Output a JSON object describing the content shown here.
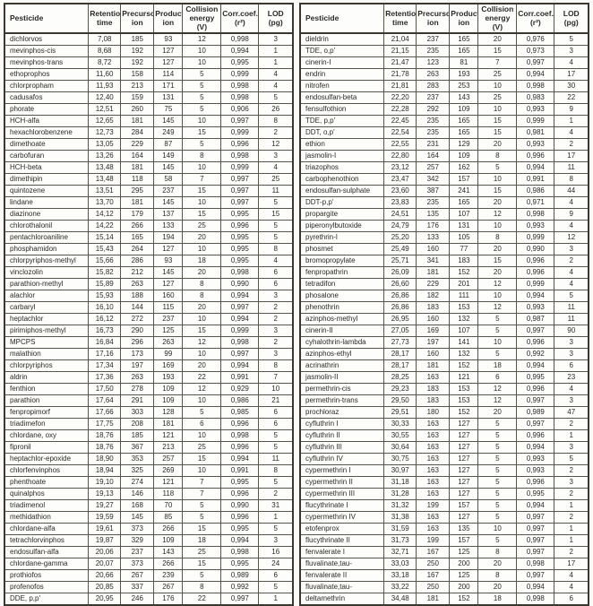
{
  "colors": {
    "page_background": "#fbfaf8",
    "table_background": "#fdfdfb",
    "border": "#58544b",
    "outer_border": "#3b372f",
    "text": "#2b2a27"
  },
  "columns": [
    "Pesticide",
    "Retention\ntime",
    "Precursor\nion",
    "Product\nion",
    "Collision\nenergy (V)",
    "Corr.coef.\n(r²)",
    "LOD\n(pg)"
  ],
  "tables": [
    {
      "name": "pesticide-table-left",
      "rows": [
        [
          "dichlorvos",
          "7,08",
          "185",
          "93",
          "12",
          "0,998",
          "3"
        ],
        [
          "mevinphos-cis",
          "8,68",
          "192",
          "127",
          "10",
          "0,994",
          "1"
        ],
        [
          "mevinphos-trans",
          "8,72",
          "192",
          "127",
          "10",
          "0,995",
          "1"
        ],
        [
          "ethoprophos",
          "11,60",
          "158",
          "114",
          "5",
          "0,999",
          "4"
        ],
        [
          "chlorpropham",
          "11,93",
          "213",
          "171",
          "5",
          "0,998",
          "4"
        ],
        [
          "cadusafos",
          "12,40",
          "159",
          "131",
          "5",
          "0,998",
          "5"
        ],
        [
          "phorate",
          "12,51",
          "260",
          "75",
          "5",
          "0,906",
          "26"
        ],
        [
          "HCH-alfa",
          "12,65",
          "181",
          "145",
          "10",
          "0,997",
          "8"
        ],
        [
          "hexachlorobenzene",
          "12,73",
          "284",
          "249",
          "15",
          "0,999",
          "2"
        ],
        [
          "dimethoate",
          "13,05",
          "229",
          "87",
          "5",
          "0,996",
          "12"
        ],
        [
          "carbofuran",
          "13,26",
          "164",
          "149",
          "8",
          "0,998",
          "3"
        ],
        [
          "HCH-beta",
          "13,48",
          "181",
          "145",
          "10",
          "0,999",
          "4"
        ],
        [
          "dimethipin",
          "13,48",
          "118",
          "58",
          "7",
          "0,997",
          "25"
        ],
        [
          "quintozene",
          "13,51",
          "295",
          "237",
          "15",
          "0,997",
          "11"
        ],
        [
          "lindane",
          "13,70",
          "181",
          "145",
          "10",
          "0,997",
          "5"
        ],
        [
          "diazinone",
          "14,12",
          "179",
          "137",
          "15",
          "0,995",
          "15"
        ],
        [
          "chlorothalonil",
          "14,22",
          "266",
          "133",
          "25",
          "0,996",
          "5"
        ],
        [
          "pentachloroaniline",
          "15,14",
          "165",
          "194",
          "20",
          "0,995",
          "5"
        ],
        [
          "phosphamidon",
          "15,43",
          "264",
          "127",
          "10",
          "0,995",
          "8"
        ],
        [
          "chlorpyriphos-methyl",
          "15,66",
          "286",
          "93",
          "18",
          "0,995",
          "4"
        ],
        [
          "vinclozolin",
          "15,82",
          "212",
          "145",
          "20",
          "0,998",
          "6"
        ],
        [
          "parathion-methyl",
          "15,89",
          "263",
          "127",
          "8",
          "0,990",
          "6"
        ],
        [
          "alachlor",
          "15,93",
          "188",
          "160",
          "8",
          "0,994",
          "3"
        ],
        [
          "carbaryl",
          "16,10",
          "144",
          "115",
          "20",
          "0,997",
          "2"
        ],
        [
          "heptachlor",
          "16,12",
          "272",
          "237",
          "10",
          "0,994",
          "2"
        ],
        [
          "pirimiphos-methyl",
          "16,73",
          "290",
          "125",
          "15",
          "0,999",
          "3"
        ],
        [
          "MPCPS",
          "16,84",
          "296",
          "263",
          "12",
          "0,998",
          "2"
        ],
        [
          "malathion",
          "17,16",
          "173",
          "99",
          "10",
          "0,997",
          "3"
        ],
        [
          "chlorpyriphos",
          "17,34",
          "197",
          "169",
          "20",
          "0,994",
          "8"
        ],
        [
          "aldrin",
          "17,36",
          "263",
          "193",
          "22",
          "0,991",
          "7"
        ],
        [
          "fenthion",
          "17,50",
          "278",
          "109",
          "12",
          "0,929",
          "10"
        ],
        [
          "parathion",
          "17,64",
          "291",
          "109",
          "10",
          "0,986",
          "21"
        ],
        [
          "fenpropimorf",
          "17,66",
          "303",
          "128",
          "5",
          "0,985",
          "6"
        ],
        [
          "triadimefon",
          "17,75",
          "208",
          "181",
          "6",
          "0,996",
          "6"
        ],
        [
          "chlordane, oxy",
          "18,76",
          "185",
          "121",
          "10",
          "0,998",
          "5"
        ],
        [
          "fipronil",
          "18,76",
          "367",
          "213",
          "25",
          "0,996",
          "5"
        ],
        [
          "heptachlor-epoxide",
          "18,90",
          "353",
          "257",
          "15",
          "0,994",
          "11"
        ],
        [
          "chlorfenvinphos",
          "18,94",
          "325",
          "269",
          "10",
          "0,991",
          "8"
        ],
        [
          "phenthoate",
          "19,10",
          "274",
          "121",
          "7",
          "0,995",
          "5"
        ],
        [
          "quinalphos",
          "19,13",
          "146",
          "118",
          "7",
          "0,996",
          "2"
        ],
        [
          "triadimenol",
          "19,27",
          "168",
          "70",
          "5",
          "0,990",
          "31"
        ],
        [
          "methidathion",
          "19,59",
          "145",
          "85",
          "5",
          "0,996",
          "1"
        ],
        [
          "chlordane-alfa",
          "19,61",
          "373",
          "266",
          "15",
          "0,995",
          "5"
        ],
        [
          "tetrachlorvinphos",
          "19,87",
          "329",
          "109",
          "18",
          "0,994",
          "3"
        ],
        [
          "endosulfan-alfa",
          "20,06",
          "237",
          "143",
          "25",
          "0,998",
          "16"
        ],
        [
          "chlordane-gamma",
          "20,07",
          "373",
          "266",
          "15",
          "0,995",
          "24"
        ],
        [
          "prothiofos",
          "20,66",
          "267",
          "239",
          "5",
          "0,989",
          "6"
        ],
        [
          "profenofos",
          "20,85",
          "337",
          "267",
          "8",
          "0,992",
          "5"
        ],
        [
          "DDE, p,p'",
          "20,95",
          "246",
          "176",
          "22",
          "0,997",
          "1"
        ]
      ]
    },
    {
      "name": "pesticide-table-right",
      "rows": [
        [
          "dieldrin",
          "21,04",
          "237",
          "165",
          "20",
          "0,976",
          "5"
        ],
        [
          "TDE, o,p'",
          "21,15",
          "235",
          "165",
          "15",
          "0,973",
          "3"
        ],
        [
          "cinerin-I",
          "21,47",
          "123",
          "81",
          "7",
          "0,997",
          "4"
        ],
        [
          "endrin",
          "21,78",
          "263",
          "193",
          "25",
          "0,994",
          "17"
        ],
        [
          "nitrofen",
          "21,81",
          "283",
          "253",
          "10",
          "0,998",
          "30"
        ],
        [
          "endosulfan-beta",
          "22,20",
          "237",
          "143",
          "25",
          "0,983",
          "22"
        ],
        [
          "fensulfothion",
          "22,28",
          "292",
          "109",
          "10",
          "0,993",
          "9"
        ],
        [
          "TDE, p,p'",
          "22,45",
          "235",
          "165",
          "15",
          "0,999",
          "1"
        ],
        [
          "DDT, o,p'",
          "22,54",
          "235",
          "165",
          "15",
          "0,981",
          "4"
        ],
        [
          "ethion",
          "22,55",
          "231",
          "129",
          "20",
          "0,993",
          "2"
        ],
        [
          "jasmolin-I",
          "22,80",
          "164",
          "109",
          "8",
          "0,996",
          "17"
        ],
        [
          "triazophos",
          "23,12",
          "257",
          "162",
          "5",
          "0,994",
          "11"
        ],
        [
          "carbophenothion",
          "23,47",
          "342",
          "157",
          "10",
          "0,991",
          "8"
        ],
        [
          "endosulfan-sulphate",
          "23,60",
          "387",
          "241",
          "15",
          "0,986",
          "44"
        ],
        [
          "DDT-p,p'",
          "23,83",
          "235",
          "165",
          "20",
          "0,971",
          "4"
        ],
        [
          "propargite",
          "24,51",
          "135",
          "107",
          "12",
          "0,998",
          "9"
        ],
        [
          "piperonylbutoxide",
          "24,79",
          "176",
          "131",
          "10",
          "0,993",
          "4"
        ],
        [
          "pyrethrin-I",
          "25,20",
          "133",
          "105",
          "8",
          "0,999",
          "12"
        ],
        [
          "phosmet",
          "25,49",
          "160",
          "77",
          "20",
          "0,990",
          "3"
        ],
        [
          "bromopropylate",
          "25,71",
          "341",
          "183",
          "15",
          "0,996",
          "2"
        ],
        [
          "fenpropathrin",
          "26,09",
          "181",
          "152",
          "20",
          "0,996",
          "4"
        ],
        [
          "tetradifon",
          "26,60",
          "229",
          "201",
          "12",
          "0,999",
          "4"
        ],
        [
          "phosalone",
          "26,86",
          "182",
          "111",
          "10",
          "0,994",
          "5"
        ],
        [
          "phenothrin",
          "26,86",
          "183",
          "153",
          "12",
          "0,993",
          "11"
        ],
        [
          "azinphos-methyl",
          "26,95",
          "160",
          "132",
          "5",
          "0,987",
          "11"
        ],
        [
          "cinerin-II",
          "27,05",
          "169",
          "107",
          "5",
          "0,997",
          "90"
        ],
        [
          "cyhalothrin-lambda",
          "27,73",
          "197",
          "141",
          "10",
          "0,996",
          "3"
        ],
        [
          "azinphos-ethyl",
          "28,17",
          "160",
          "132",
          "5",
          "0,992",
          "3"
        ],
        [
          "acrinathrin",
          "28,17",
          "181",
          "152",
          "18",
          "0,994",
          "6"
        ],
        [
          "jasmolin-II",
          "28,25",
          "163",
          "121",
          "6",
          "0,995",
          "23"
        ],
        [
          "permethrin-cis",
          "29,23",
          "183",
          "153",
          "12",
          "0,996",
          "4"
        ],
        [
          "permethrin-trans",
          "29,50",
          "183",
          "153",
          "12",
          "0,997",
          "3"
        ],
        [
          "prochloraz",
          "29,51",
          "180",
          "152",
          "20",
          "0,989",
          "47"
        ],
        [
          "cyfluthrin I",
          "30,33",
          "163",
          "127",
          "5",
          "0,997",
          "2"
        ],
        [
          "cyfluthrin II",
          "30,55",
          "163",
          "127",
          "5",
          "0,996",
          "1"
        ],
        [
          "cyfluthrin III",
          "30,64",
          "163",
          "127",
          "5",
          "0,994",
          "3"
        ],
        [
          "cyfluthrin IV",
          "30,75",
          "163",
          "127",
          "5",
          "0,993",
          "5"
        ],
        [
          "cypermethrin I",
          "30,97",
          "163",
          "127",
          "5",
          "0,993",
          "2"
        ],
        [
          "cypermethrin II",
          "31,18",
          "163",
          "127",
          "5",
          "0,996",
          "3"
        ],
        [
          "cypermethrin III",
          "31,28",
          "163",
          "127",
          "5",
          "0,995",
          "2"
        ],
        [
          "flucythrinate I",
          "31,32",
          "199",
          "157",
          "5",
          "0,994",
          "1"
        ],
        [
          "cypermethrin IV",
          "31,38",
          "163",
          "127",
          "5",
          "0,997",
          "2"
        ],
        [
          "etofenprox",
          "31,59",
          "163",
          "135",
          "10",
          "0,997",
          "1"
        ],
        [
          "flucythrinate II",
          "31,73",
          "199",
          "157",
          "5",
          "0,997",
          "1"
        ],
        [
          "fenvalerate I",
          "32,71",
          "167",
          "125",
          "8",
          "0,997",
          "2"
        ],
        [
          "fluvalinate,tau-",
          "33,03",
          "250",
          "200",
          "20",
          "0,998",
          "17"
        ],
        [
          "fenvalerate II",
          "33,18",
          "167",
          "125",
          "8",
          "0,997",
          "4"
        ],
        [
          "fluvalinate,tau-",
          "33,22",
          "250",
          "200",
          "20",
          "0,994",
          "4"
        ],
        [
          "deltamethrin",
          "34,48",
          "181",
          "152",
          "18",
          "0,998",
          "6"
        ]
      ]
    }
  ]
}
